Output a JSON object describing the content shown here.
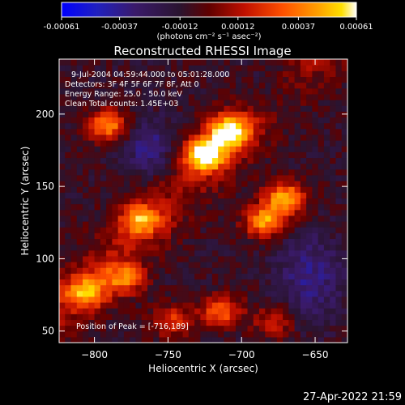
{
  "colorbar": {
    "tick_labels": [
      "-0.00061",
      "-0.00037",
      "-0.00012",
      "0.00012",
      "0.00037",
      "0.00061"
    ],
    "unit_label": "(photons cm⁻² s⁻¹ asec⁻²)",
    "colors": [
      "#0000ff",
      "#2020c0",
      "#3a1a6a",
      "#2a1430",
      "#600000",
      "#c01000",
      "#ff5000",
      "#ffa000",
      "#ffe000",
      "#ffffff"
    ]
  },
  "annotations": {
    "time_range": "9-Jul-2004 04:59:44.000 to 05:01:28.000",
    "detectors": "Detectors: 3F 4F 5F 6F 7F 8F, Att 0",
    "energy": "Energy Range: 25.0 - 50.0 keV",
    "clean": "Clean    Total counts: 1.45E+03",
    "peak": "Position of Peak = [-716,189]"
  },
  "footer": {
    "timestamp": "27-Apr-2022 21:59"
  },
  "chart_data": {
    "type": "heatmap",
    "title": "Reconstructed RHESSI Image",
    "xlabel": "Heliocentric X (arcsec)",
    "ylabel": "Heliocentric Y (arcsec)",
    "xlim": [
      -824,
      -628
    ],
    "ylim": [
      42,
      238
    ],
    "x_ticks": [
      -800,
      -750,
      -700,
      -650
    ],
    "y_ticks": [
      50,
      100,
      150,
      200
    ],
    "x_tick_labels": [
      "−800",
      "−750",
      "−700",
      "−650"
    ],
    "y_tick_labels": [
      "50",
      "100",
      "150",
      "200"
    ],
    "color_range": [
      -0.00061,
      0.00061
    ],
    "peak_position": [
      -716,
      189
    ],
    "bright_sources": [
      {
        "x": -727,
        "y": 170,
        "rel": 1.0
      },
      {
        "x": -710,
        "y": 186,
        "rel": 0.95
      },
      {
        "x": -672,
        "y": 140,
        "rel": 0.8
      },
      {
        "x": -686,
        "y": 124,
        "rel": 0.75
      },
      {
        "x": -793,
        "y": 190,
        "rel": 0.7
      },
      {
        "x": -770,
        "y": 125,
        "rel": 0.65
      },
      {
        "x": -808,
        "y": 75,
        "rel": 0.65
      },
      {
        "x": -782,
        "y": 85,
        "rel": 0.6
      },
      {
        "x": -716,
        "y": 62,
        "rel": 0.6
      },
      {
        "x": -750,
        "y": 55,
        "rel": 0.45
      },
      {
        "x": -680,
        "y": 55,
        "rel": 0.4
      }
    ]
  }
}
